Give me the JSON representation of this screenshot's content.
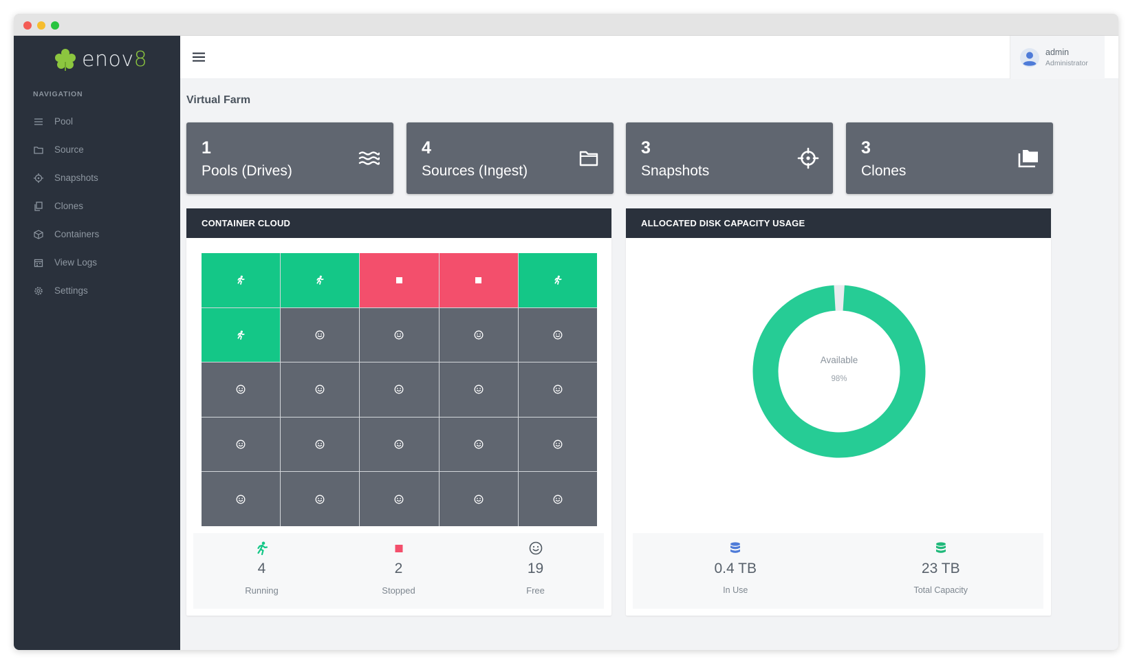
{
  "app": {
    "logo_text_main": "enov",
    "logo_text_accent": "8",
    "brand_color": "#8cc63f"
  },
  "sidebar": {
    "heading": "NAVIGATION",
    "items": [
      {
        "label": "Pool",
        "icon": "lines-icon"
      },
      {
        "label": "Source",
        "icon": "folder-icon"
      },
      {
        "label": "Snapshots",
        "icon": "crosshair-icon"
      },
      {
        "label": "Clones",
        "icon": "copy-icon"
      },
      {
        "label": "Containers",
        "icon": "cube-icon"
      },
      {
        "label": "View Logs",
        "icon": "calendar-icon"
      },
      {
        "label": "Settings",
        "icon": "gear-icon"
      }
    ]
  },
  "topbar": {
    "user_name": "admin",
    "user_role": "Administrator"
  },
  "page": {
    "title": "Virtual Farm"
  },
  "stats": [
    {
      "value": "1",
      "label": "Pools (Drives)",
      "icon": "waves-icon"
    },
    {
      "value": "4",
      "label": "Sources (Ingest)",
      "icon": "folder-icon"
    },
    {
      "value": "3",
      "label": "Snapshots",
      "icon": "crosshair-icon"
    },
    {
      "value": "3",
      "label": "Clones",
      "icon": "folders-icon"
    }
  ],
  "container_cloud": {
    "title": "CONTAINER CLOUD",
    "cells": [
      "running",
      "running",
      "stopped",
      "stopped",
      "running",
      "running",
      "free",
      "free",
      "free",
      "free",
      "free",
      "free",
      "free",
      "free",
      "free",
      "free",
      "free",
      "free",
      "free",
      "free",
      "free",
      "free",
      "free",
      "free",
      "free"
    ],
    "colors": {
      "running": "#14c787",
      "stopped": "#f34f6c",
      "free": "#606670"
    },
    "legend": {
      "running": {
        "value": "4",
        "label": "Running"
      },
      "stopped": {
        "value": "2",
        "label": "Stopped"
      },
      "free": {
        "value": "19",
        "label": "Free"
      }
    }
  },
  "disk_usage": {
    "title": "ALLOCATED DISK CAPACITY USAGE",
    "center_label": "Available",
    "center_value": "98%",
    "available_fraction": 0.98,
    "donut_color": "#26cc95",
    "used_color": "#e9ecef",
    "in_use": {
      "value": "0.4 TB",
      "label": "In Use",
      "color": "#4e7bd8"
    },
    "total": {
      "value": "23 TB",
      "label": "Total Capacity",
      "color": "#1fb97a"
    }
  }
}
